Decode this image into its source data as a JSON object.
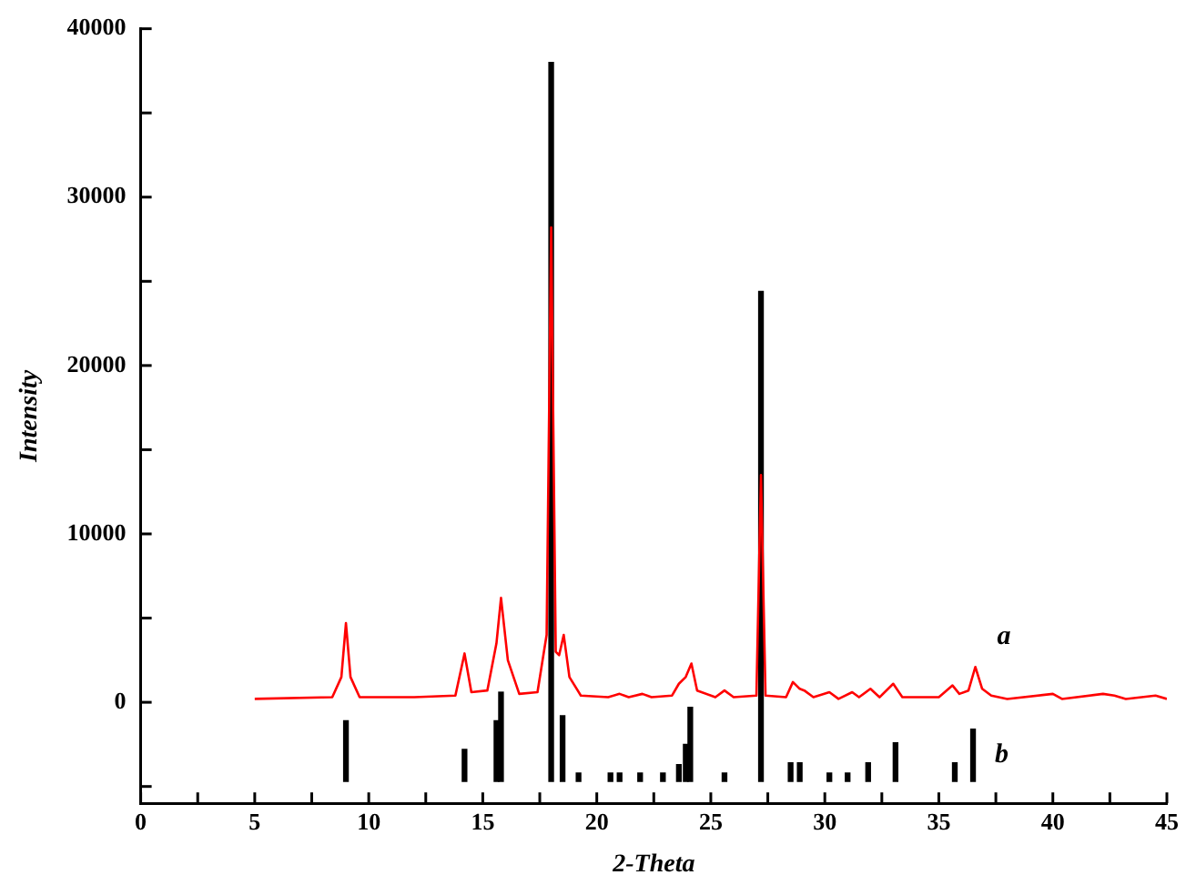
{
  "chart_data": {
    "type": "line",
    "xlabel": "2-Theta",
    "ylabel": "Intensity",
    "xlim": [
      0,
      45
    ],
    "ylim": [
      -6000,
      40000
    ],
    "xticks": [
      0,
      {
        "value": 2.5,
        "label": null
      },
      5,
      {
        "value": 7.5,
        "label": null
      },
      10,
      {
        "value": 12.5,
        "label": null
      },
      15,
      {
        "value": 17.5,
        "label": null
      },
      20,
      {
        "value": 22.5,
        "label": null
      },
      25,
      {
        "value": 27.5,
        "label": null
      },
      30,
      {
        "value": 32.5,
        "label": null
      },
      35,
      {
        "value": 37.5,
        "label": null
      },
      40,
      {
        "value": 42.5,
        "label": null
      },
      45
    ],
    "yticks": [
      {
        "value": -5000,
        "label": null
      },
      0,
      {
        "value": 5000,
        "label": null
      },
      10000,
      {
        "value": 15000,
        "label": null
      },
      20000,
      {
        "value": 25000,
        "label": null
      },
      30000,
      {
        "value": 35000,
        "label": null
      },
      40000
    ],
    "grid": false,
    "legend": false,
    "series": [
      {
        "name": "a",
        "color": "#ff0000",
        "x": [
          5,
          8.4,
          8.8,
          9.0,
          9.2,
          9.6,
          12,
          13.8,
          14.2,
          14.5,
          15.2,
          15.6,
          15.8,
          16.1,
          16.6,
          17.4,
          17.8,
          18.0,
          18.2,
          18.35,
          18.55,
          18.8,
          19.3,
          20.5,
          21.0,
          21.4,
          22.0,
          22.4,
          23.3,
          23.6,
          23.9,
          24.15,
          24.4,
          25.2,
          25.6,
          26.0,
          27.0,
          27.2,
          27.4,
          28.3,
          28.6,
          28.9,
          29.1,
          29.5,
          30.2,
          30.6,
          31.2,
          31.5,
          32.0,
          32.4,
          33.0,
          33.4,
          35.0,
          35.6,
          35.9,
          36.3,
          36.6,
          36.9,
          37.3,
          38.0,
          40.0,
          40.4,
          42.2,
          42.7,
          43.2,
          44.5,
          45
        ],
        "values": [
          200,
          300,
          1500,
          4700,
          1500,
          300,
          300,
          400,
          2900,
          600,
          700,
          3500,
          6200,
          2500,
          500,
          600,
          4000,
          28200,
          3000,
          2800,
          4000,
          1500,
          400,
          300,
          500,
          300,
          500,
          300,
          400,
          1100,
          1500,
          2300,
          700,
          300,
          700,
          300,
          400,
          13500,
          400,
          300,
          1200,
          800,
          700,
          300,
          600,
          200,
          600,
          300,
          800,
          300,
          1100,
          300,
          300,
          1000,
          500,
          700,
          2100,
          800,
          400,
          200,
          500,
          200,
          500,
          400,
          200,
          400,
          200
        ]
      },
      {
        "type": "bar",
        "name": "b",
        "color": "#000000",
        "x": [
          9.0,
          14.2,
          15.6,
          15.8,
          18.0,
          18.5,
          19.2,
          20.6,
          21.0,
          21.9,
          22.9,
          23.6,
          23.9,
          24.1,
          25.6,
          27.2,
          28.5,
          28.9,
          30.2,
          31.0,
          31.9,
          33.1,
          35.7,
          36.5
        ],
        "base": [
          -4700,
          -4700,
          -4700,
          -4700,
          -4700,
          -4700,
          -4700,
          -4700,
          -4700,
          -4700,
          -4700,
          -4700,
          -4700,
          -4700,
          -4700,
          -4700,
          -4700,
          -4700,
          -4700,
          -4700,
          -4700,
          -4700,
          -4700,
          -4700
        ],
        "values": [
          3600,
          1900,
          3600,
          5300,
          42700,
          3900,
          500,
          500,
          500,
          500,
          500,
          1000,
          2200,
          4400,
          500,
          29100,
          1100,
          1100,
          500,
          500,
          1100,
          2300,
          1100,
          3100
        ]
      }
    ]
  }
}
